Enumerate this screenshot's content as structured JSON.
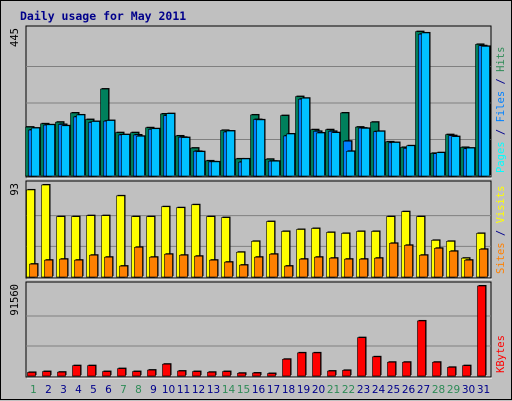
{
  "chart_data": {
    "title": "Daily usage for May 2011",
    "type": "bar",
    "days": [
      "1",
      "2",
      "3",
      "4",
      "5",
      "6",
      "7",
      "8",
      "9",
      "10",
      "11",
      "12",
      "13",
      "14",
      "15",
      "16",
      "17",
      "18",
      "19",
      "20",
      "21",
      "22",
      "23",
      "24",
      "25",
      "26",
      "27",
      "28",
      "29",
      "30",
      "31"
    ],
    "weekend_days": [
      "1",
      "7",
      "8",
      "14",
      "15",
      "21",
      "22",
      "28",
      "29"
    ],
    "panels": [
      {
        "id": "pages-files-hits",
        "y_max_label": "445",
        "ylim": [
          0,
          445
        ],
        "right_label_parts": [
          {
            "text": "Pages",
            "color": "#00ffff"
          },
          {
            "text": " / ",
            "color": "#00008b"
          },
          {
            "text": "Files",
            "color": "#0080ff"
          },
          {
            "text": " / ",
            "color": "#00008b"
          },
          {
            "text": "Hits",
            "color": "#2e8b57"
          }
        ],
        "series": [
          {
            "name": "Hits",
            "color": "#00805c",
            "values": [
              149,
              159,
              164,
              192,
              172,
              265,
              132,
              132,
              147,
              189,
              122,
              85,
              46,
              139,
              52,
              186,
              51,
              184,
              242,
              141,
              141,
              192,
              149,
              164,
              104,
              87,
              440,
              69,
              126,
              87,
              401
            ]
          },
          {
            "name": "Files",
            "color": "#0080ff",
            "values": [
              140,
              155,
              157,
              180,
              163,
              167,
              125,
              125,
              142,
              184,
              118,
              75,
              43,
              134,
              42,
              172,
              45,
              122,
              234,
              136,
              136,
              106,
              146,
              135,
              101,
              84,
              432,
              68,
              123,
              83,
              397
            ]
          },
          {
            "name": "Pages",
            "color": "#00c0ff",
            "values": [
              146,
              156,
              153,
              186,
              166,
              169,
              126,
              121,
              144,
              190,
              117,
              74,
              43,
              137,
              52,
              171,
              45,
              128,
              237,
              131,
              132,
              75,
              145,
              136,
              102,
              92,
              436,
              71,
              120,
              85,
              395
            ]
          }
        ]
      },
      {
        "id": "sites-visits",
        "y_max_label": "93",
        "ylim": [
          0,
          93
        ],
        "right_label_parts": [
          {
            "text": "Sites",
            "color": "#ff8000"
          },
          {
            "text": " / ",
            "color": "#00008b"
          },
          {
            "text": "Visits",
            "color": "#ffff00"
          }
        ],
        "series": [
          {
            "name": "Visits",
            "color": "#ffff00",
            "values": [
              88,
              93,
              61,
              61,
              62,
              62,
              82,
              61,
              61,
              71,
              70,
              73,
              61,
              60,
              25,
              36,
              56,
              46,
              48,
              49,
              45,
              44,
              46,
              46,
              61,
              66,
              61,
              37,
              36,
              19,
              44
            ]
          },
          {
            "name": "Sites",
            "color": "#ff8000",
            "values": [
              13,
              17,
              18,
              17,
              22,
              20,
              11,
              30,
              20,
              23,
              22,
              21,
              17,
              15,
              12,
              20,
              23,
              11,
              18,
              20,
              19,
              18,
              18,
              19,
              34,
              32,
              22,
              29,
              26,
              17,
              28
            ]
          }
        ]
      },
      {
        "id": "kbytes",
        "y_max_label": "91560",
        "ylim": [
          0,
          91560
        ],
        "right_label_parts": [
          {
            "text": "KBytes",
            "color": "#ff0000"
          }
        ],
        "series": [
          {
            "name": "KBytes",
            "color": "#ff0000",
            "values": [
              3600,
              4500,
              3900,
              10500,
              10500,
              4500,
              7500,
              4500,
              6000,
              12000,
              5000,
              4500,
              3800,
              4500,
              2800,
              3000,
              2500,
              17000,
              23500,
              23500,
              5000,
              5700,
              39000,
              19500,
              14000,
              14000,
              56000,
              14000,
              8800,
              10500,
              91560
            ]
          }
        ]
      }
    ],
    "colors": {
      "weekday_label": "#00008b",
      "weekend_label": "#2e8b57",
      "bar_shadow": "#000000",
      "plot_bg": "#c0c0c0"
    }
  }
}
